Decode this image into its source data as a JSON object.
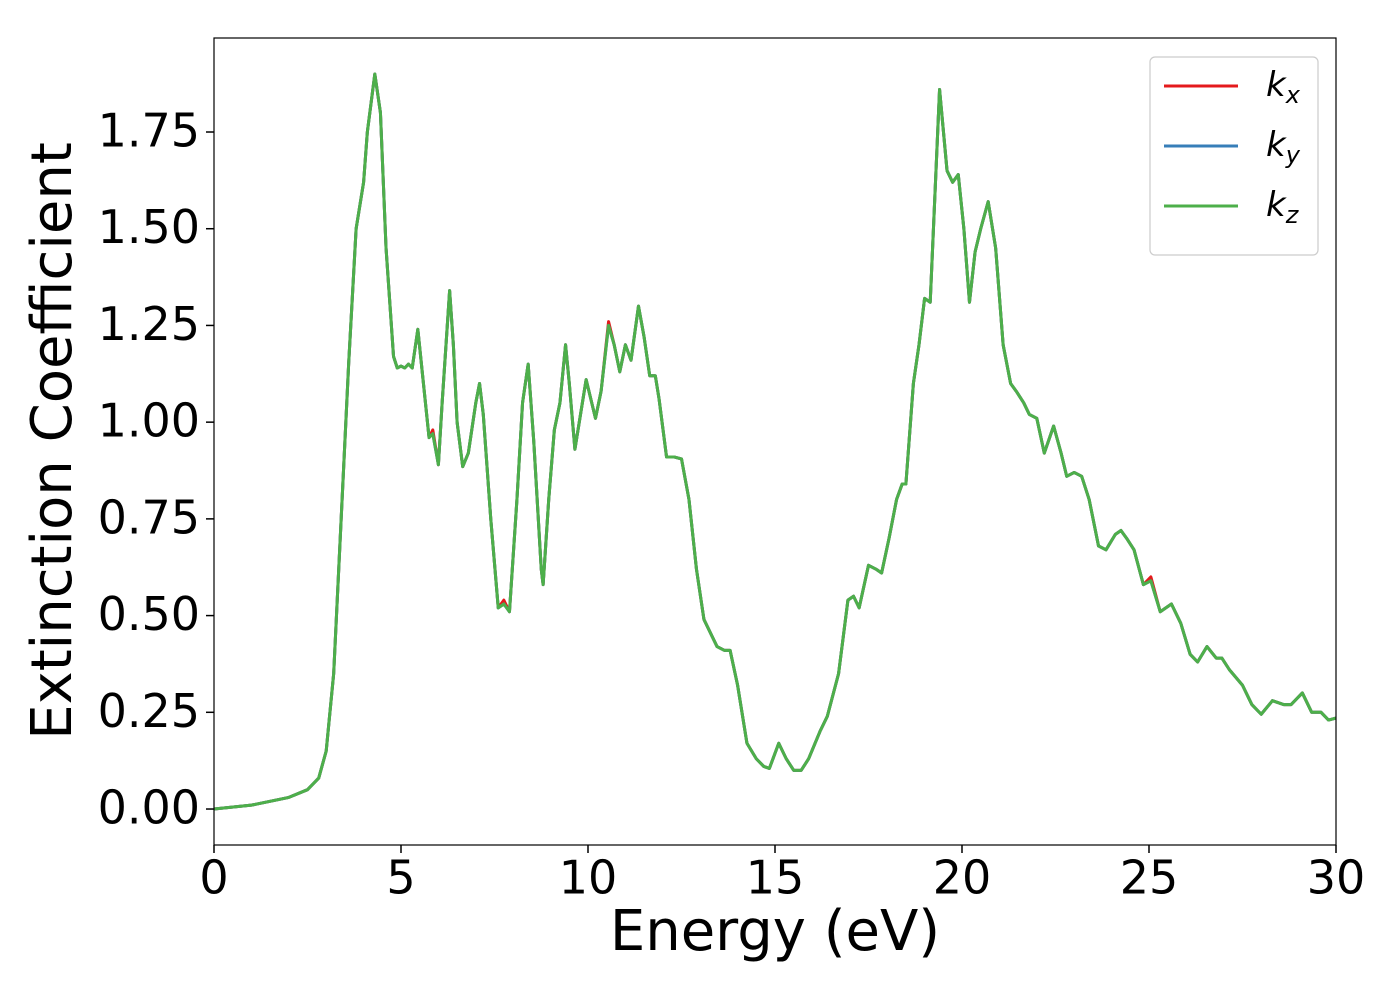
{
  "chart_data": {
    "type": "line",
    "xlabel": "Energy (eV)",
    "ylabel": "Extinction Coefficient",
    "xlim": [
      0,
      30
    ],
    "ylim": [
      -0.093,
      1.993
    ],
    "xticks": [
      0,
      5,
      10,
      15,
      20,
      25,
      30
    ],
    "yticks": [
      {
        "value": 0,
        "label": "0.00"
      },
      0.25,
      {
        "value": 0.5,
        "label": "0.50"
      },
      0.75,
      {
        "value": 1,
        "label": "1.00"
      },
      1.25,
      {
        "value": 1.5,
        "label": "1.50"
      },
      1.75
    ],
    "grid": false,
    "legend": "upper right",
    "x": [
      0,
      1,
      2,
      2.5,
      2.8,
      3.0,
      3.2,
      3.4,
      3.6,
      3.8,
      4.0,
      4.1,
      4.3,
      4.45,
      4.6,
      4.8,
      4.9,
      5.0,
      5.1,
      5.2,
      5.3,
      5.45,
      5.6,
      5.75,
      5.85,
      6.0,
      6.1,
      6.3,
      6.4,
      6.5,
      6.65,
      6.8,
      7.0,
      7.1,
      7.2,
      7.4,
      7.6,
      7.75,
      7.9,
      8.1,
      8.25,
      8.4,
      8.55,
      8.75,
      8.8,
      8.95,
      9.1,
      9.25,
      9.4,
      9.5,
      9.65,
      9.8,
      9.95,
      10.05,
      10.2,
      10.35,
      10.55,
      10.7,
      10.85,
      11.0,
      11.15,
      11.35,
      11.5,
      11.65,
      11.8,
      11.9,
      12.1,
      12.3,
      12.5,
      12.7,
      12.9,
      13.1,
      13.3,
      13.45,
      13.65,
      13.8,
      14.0,
      14.25,
      14.5,
      14.7,
      14.85,
      15.1,
      15.3,
      15.5,
      15.7,
      15.9,
      16.2,
      16.4,
      16.7,
      16.95,
      17.1,
      17.25,
      17.5,
      17.7,
      17.85,
      18.05,
      18.25,
      18.4,
      18.5,
      18.7,
      18.85,
      19.0,
      19.15,
      19.4,
      19.6,
      19.75,
      19.9,
      20.05,
      20.2,
      20.35,
      20.5,
      20.7,
      20.9,
      21.1,
      21.3,
      21.45,
      21.65,
      21.8,
      22.0,
      22.2,
      22.45,
      22.65,
      22.8,
      23.0,
      23.2,
      23.4,
      23.65,
      23.85,
      24.1,
      24.25,
      24.4,
      24.6,
      24.85,
      25.05,
      25.3,
      25.6,
      25.85,
      26.1,
      26.3,
      26.55,
      26.8,
      26.95,
      27.15,
      27.5,
      27.75,
      28.0,
      28.3,
      28.6,
      28.8,
      29.1,
      29.35,
      29.6,
      29.8,
      30.0
    ],
    "series": [
      {
        "name": "kx",
        "color": "#e41a1c",
        "values": [
          0,
          0.01,
          0.03,
          0.05,
          0.08,
          0.15,
          0.35,
          0.75,
          1.15,
          1.5,
          1.62,
          1.75,
          1.9,
          1.8,
          1.45,
          1.17,
          1.14,
          1.145,
          1.14,
          1.15,
          1.14,
          1.24,
          1.1,
          0.96,
          0.98,
          0.89,
          1.05,
          1.34,
          1.2,
          1.0,
          0.885,
          0.92,
          1.05,
          1.1,
          1.02,
          0.75,
          0.52,
          0.54,
          0.51,
          0.8,
          1.05,
          1.15,
          0.95,
          0.62,
          0.58,
          0.8,
          0.98,
          1.05,
          1.2,
          1.1,
          0.93,
          1.02,
          1.11,
          1.07,
          1.01,
          1.08,
          1.26,
          1.2,
          1.13,
          1.2,
          1.16,
          1.3,
          1.22,
          1.12,
          1.12,
          1.06,
          0.91,
          0.91,
          0.905,
          0.8,
          0.62,
          0.49,
          0.45,
          0.42,
          0.41,
          0.41,
          0.32,
          0.17,
          0.13,
          0.11,
          0.105,
          0.17,
          0.13,
          0.1,
          0.1,
          0.13,
          0.2,
          0.24,
          0.35,
          0.54,
          0.55,
          0.52,
          0.63,
          0.62,
          0.61,
          0.7,
          0.8,
          0.84,
          0.84,
          1.1,
          1.2,
          1.32,
          1.31,
          1.86,
          1.65,
          1.62,
          1.64,
          1.5,
          1.31,
          1.44,
          1.5,
          1.57,
          1.45,
          1.2,
          1.1,
          1.08,
          1.05,
          1.02,
          1.01,
          0.92,
          0.99,
          0.92,
          0.86,
          0.87,
          0.86,
          0.8,
          0.68,
          0.67,
          0.71,
          0.72,
          0.7,
          0.67,
          0.58,
          0.6,
          0.51,
          0.53,
          0.48,
          0.4,
          0.38,
          0.42,
          0.39,
          0.39,
          0.36,
          0.32,
          0.27,
          0.245,
          0.28,
          0.27,
          0.27,
          0.3,
          0.25,
          0.25,
          0.23,
          0.235
        ]
      },
      {
        "name": "ky",
        "color": "#377eb8",
        "values": [
          0,
          0.01,
          0.03,
          0.05,
          0.08,
          0.15,
          0.35,
          0.75,
          1.15,
          1.5,
          1.62,
          1.75,
          1.9,
          1.8,
          1.45,
          1.17,
          1.14,
          1.145,
          1.14,
          1.15,
          1.14,
          1.24,
          1.1,
          0.96,
          0.97,
          0.89,
          1.05,
          1.34,
          1.2,
          1.0,
          0.885,
          0.92,
          1.05,
          1.1,
          1.02,
          0.75,
          0.52,
          0.53,
          0.51,
          0.8,
          1.05,
          1.15,
          0.95,
          0.62,
          0.58,
          0.8,
          0.98,
          1.05,
          1.2,
          1.1,
          0.93,
          1.02,
          1.11,
          1.07,
          1.01,
          1.08,
          1.25,
          1.2,
          1.13,
          1.2,
          1.16,
          1.3,
          1.22,
          1.12,
          1.12,
          1.06,
          0.91,
          0.91,
          0.905,
          0.8,
          0.62,
          0.49,
          0.45,
          0.42,
          0.41,
          0.41,
          0.32,
          0.17,
          0.13,
          0.11,
          0.105,
          0.17,
          0.13,
          0.1,
          0.1,
          0.13,
          0.2,
          0.24,
          0.35,
          0.54,
          0.55,
          0.52,
          0.63,
          0.62,
          0.61,
          0.7,
          0.8,
          0.84,
          0.84,
          1.1,
          1.2,
          1.32,
          1.31,
          1.86,
          1.65,
          1.62,
          1.64,
          1.5,
          1.31,
          1.44,
          1.5,
          1.57,
          1.45,
          1.2,
          1.1,
          1.08,
          1.05,
          1.02,
          1.01,
          0.92,
          0.99,
          0.92,
          0.86,
          0.87,
          0.86,
          0.8,
          0.68,
          0.67,
          0.71,
          0.72,
          0.7,
          0.67,
          0.58,
          0.59,
          0.51,
          0.53,
          0.48,
          0.4,
          0.38,
          0.42,
          0.39,
          0.39,
          0.36,
          0.32,
          0.27,
          0.245,
          0.28,
          0.27,
          0.27,
          0.3,
          0.25,
          0.25,
          0.23,
          0.235
        ]
      },
      {
        "name": "kz",
        "color": "#4daf4a",
        "values": [
          0,
          0.01,
          0.03,
          0.05,
          0.08,
          0.15,
          0.35,
          0.75,
          1.15,
          1.5,
          1.62,
          1.75,
          1.9,
          1.8,
          1.45,
          1.17,
          1.14,
          1.145,
          1.14,
          1.15,
          1.14,
          1.24,
          1.1,
          0.96,
          0.97,
          0.89,
          1.05,
          1.34,
          1.2,
          1.0,
          0.885,
          0.92,
          1.05,
          1.1,
          1.02,
          0.75,
          0.52,
          0.53,
          0.51,
          0.8,
          1.05,
          1.15,
          0.95,
          0.62,
          0.58,
          0.8,
          0.98,
          1.05,
          1.2,
          1.1,
          0.93,
          1.02,
          1.11,
          1.07,
          1.01,
          1.08,
          1.25,
          1.2,
          1.13,
          1.2,
          1.16,
          1.3,
          1.22,
          1.12,
          1.12,
          1.06,
          0.91,
          0.91,
          0.905,
          0.8,
          0.62,
          0.49,
          0.45,
          0.42,
          0.41,
          0.41,
          0.32,
          0.17,
          0.13,
          0.11,
          0.105,
          0.17,
          0.13,
          0.1,
          0.1,
          0.13,
          0.2,
          0.24,
          0.35,
          0.54,
          0.55,
          0.52,
          0.63,
          0.62,
          0.61,
          0.7,
          0.8,
          0.84,
          0.84,
          1.1,
          1.2,
          1.32,
          1.31,
          1.86,
          1.65,
          1.62,
          1.64,
          1.5,
          1.31,
          1.44,
          1.5,
          1.57,
          1.45,
          1.2,
          1.1,
          1.08,
          1.05,
          1.02,
          1.01,
          0.92,
          0.99,
          0.92,
          0.86,
          0.87,
          0.86,
          0.8,
          0.68,
          0.67,
          0.71,
          0.72,
          0.7,
          0.67,
          0.58,
          0.59,
          0.51,
          0.53,
          0.48,
          0.4,
          0.38,
          0.42,
          0.39,
          0.39,
          0.36,
          0.32,
          0.27,
          0.245,
          0.28,
          0.27,
          0.27,
          0.3,
          0.25,
          0.25,
          0.23,
          0.235
        ]
      }
    ]
  }
}
